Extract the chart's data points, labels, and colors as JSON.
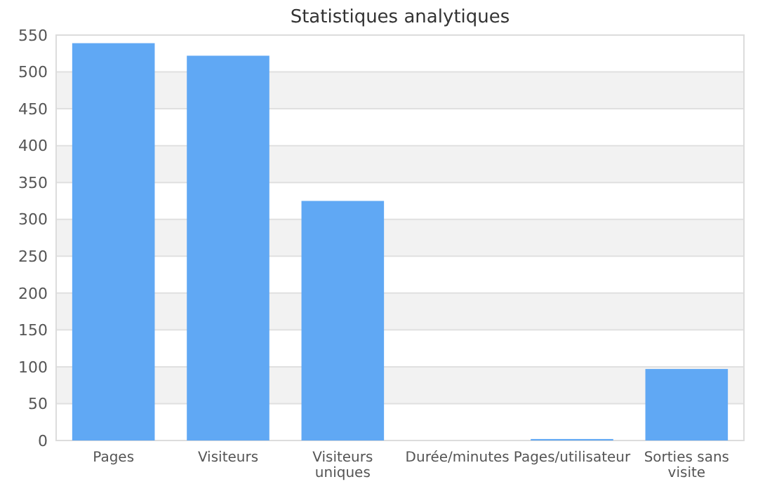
{
  "chart_data": {
    "type": "bar",
    "title": "Statistiques analytiques",
    "categories": [
      "Pages",
      "Visiteurs",
      "Visiteurs uniques",
      "Durée/minutes",
      "Pages/utilisateur",
      "Sorties sans visite"
    ],
    "values": [
      539,
      522,
      325,
      0,
      2,
      97
    ],
    "color": "#60a8f4",
    "ylim": [
      0,
      550
    ],
    "yticks": [
      0,
      50,
      100,
      150,
      200,
      250,
      300,
      350,
      400,
      450,
      500,
      550
    ],
    "grid": "y"
  }
}
